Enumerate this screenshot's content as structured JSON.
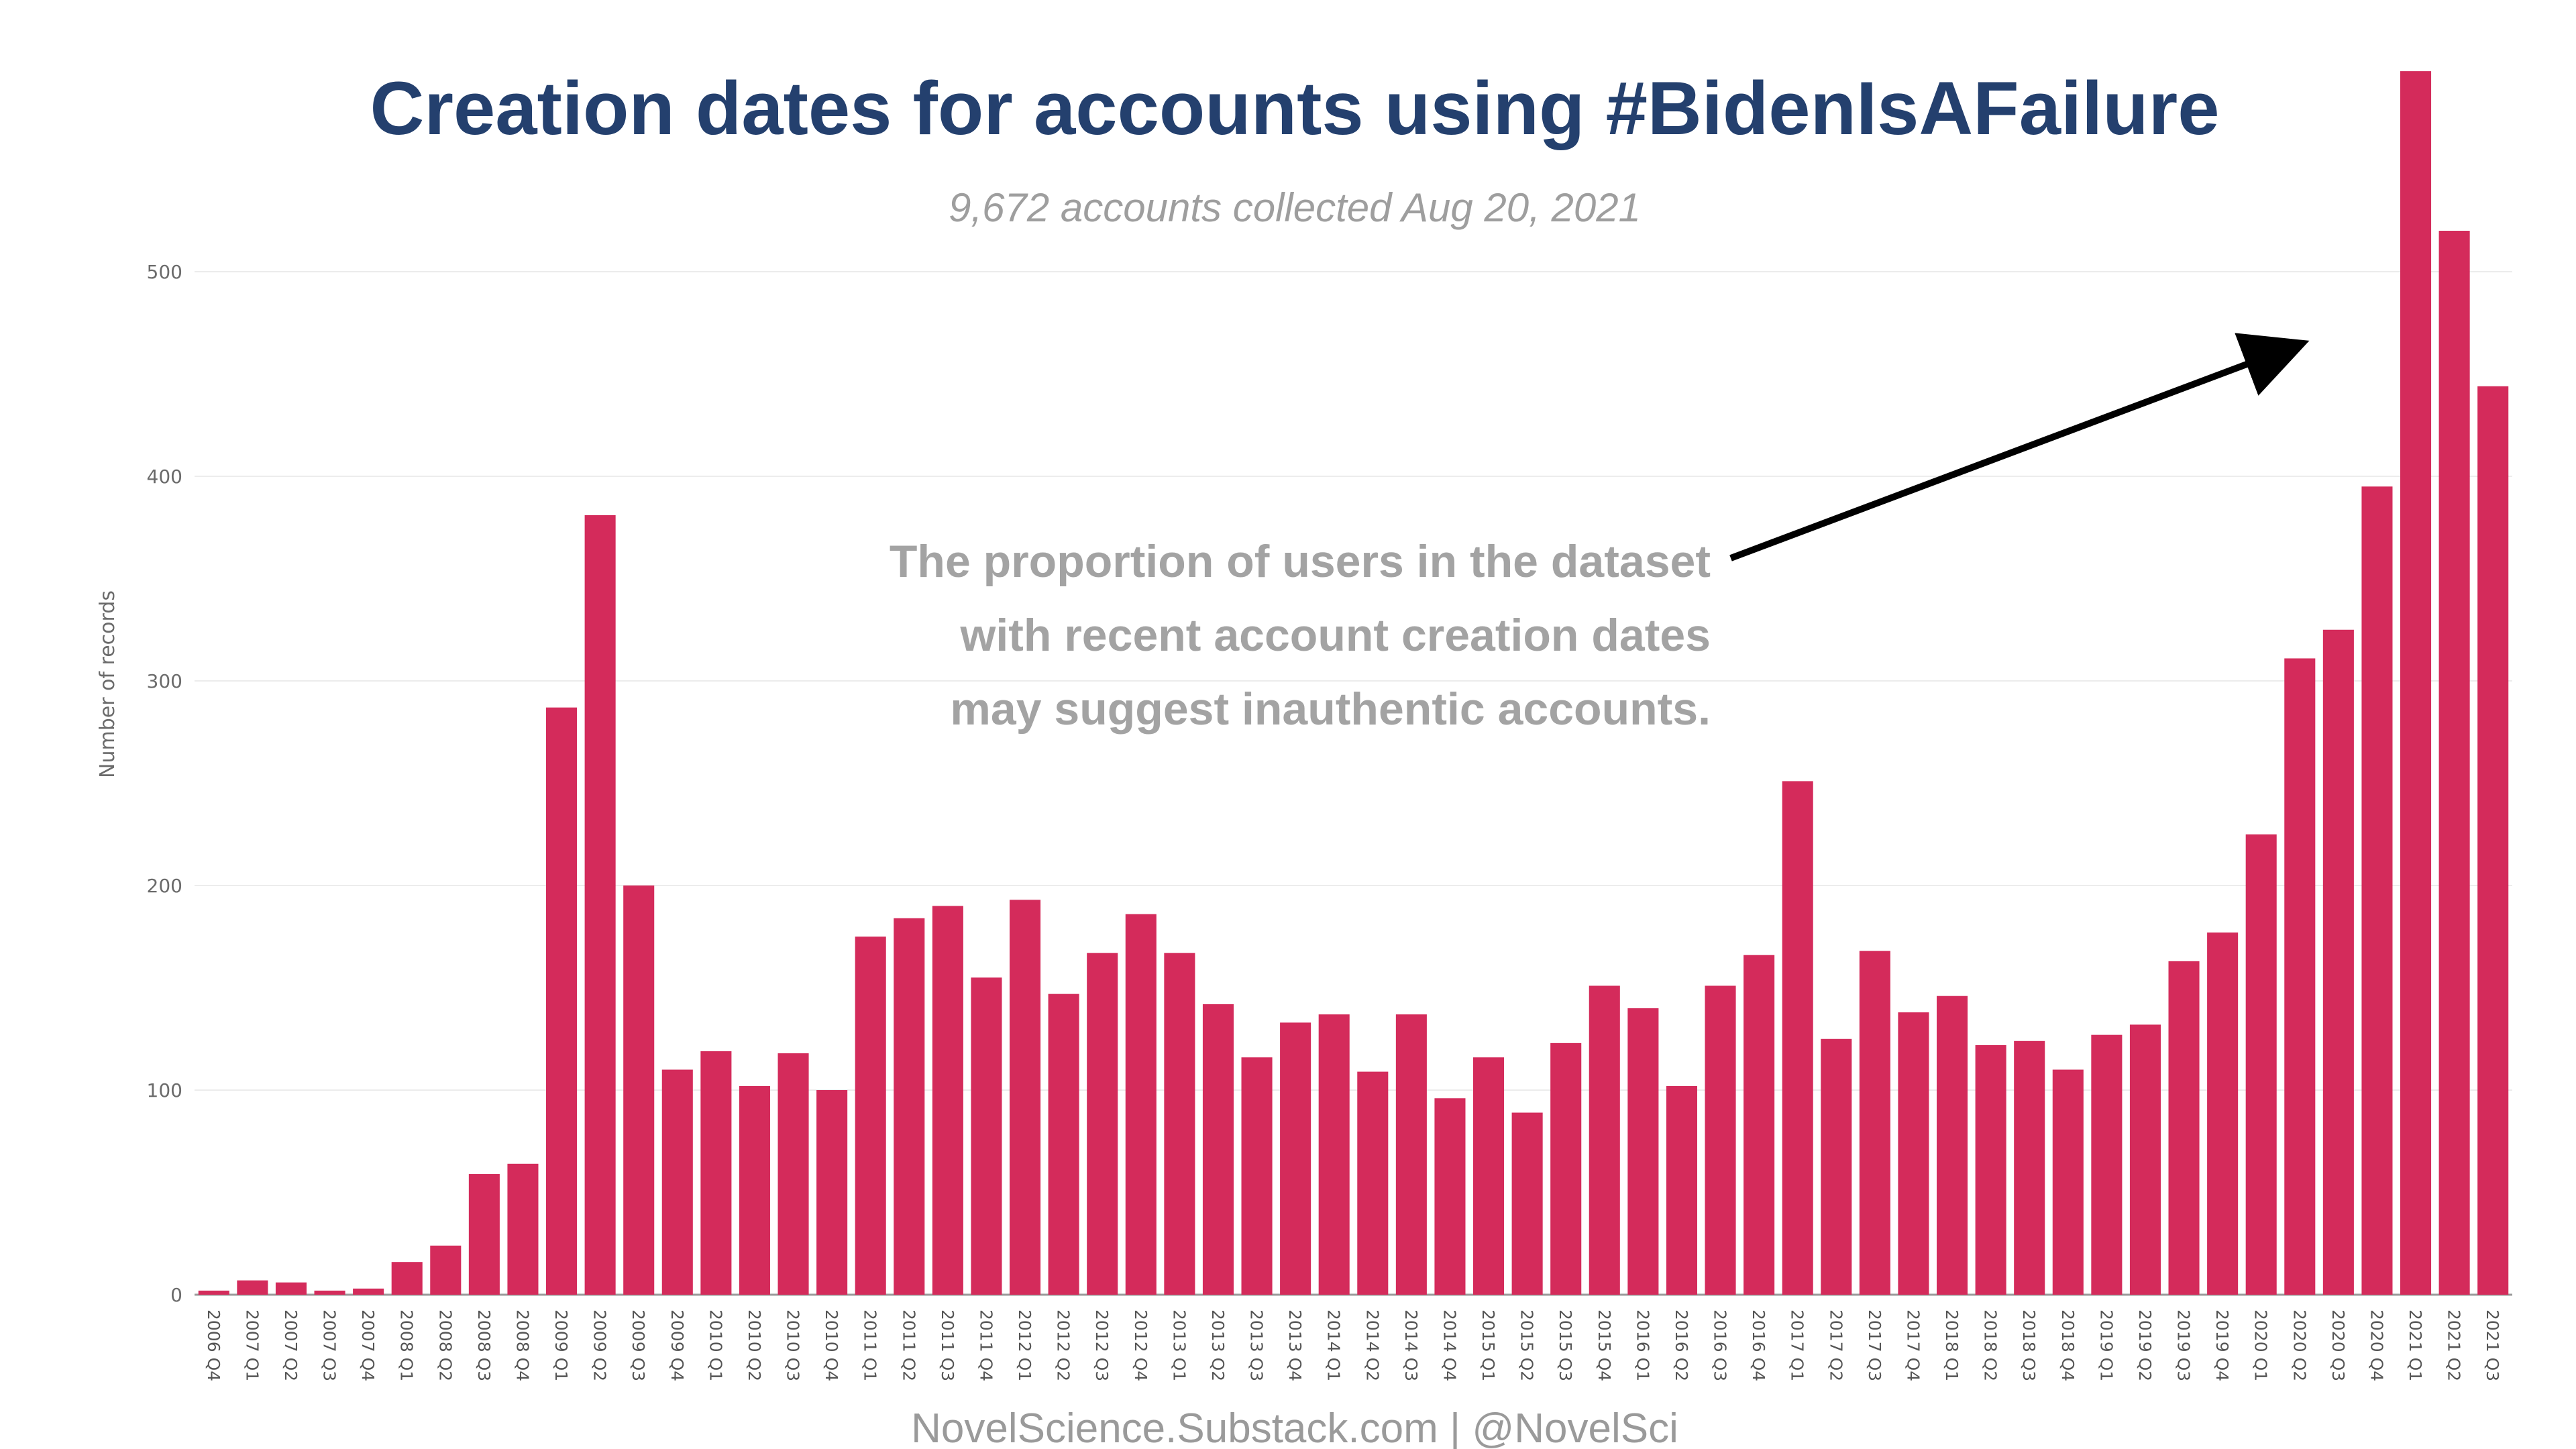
{
  "chart_data": {
    "type": "bar",
    "title": "Creation dates for accounts using #BidenIsAFailure",
    "subtitle": "9,672 accounts collected Aug 20, 2021",
    "xlabel": "",
    "ylabel": "Number of records",
    "ylim": [
      0,
      600
    ],
    "yticks": [
      0,
      100,
      200,
      300,
      400,
      500
    ],
    "ytick_labels": [
      "0",
      "100",
      "200",
      "300",
      "400",
      "500"
    ],
    "grid": true,
    "bar_color": "#d42b5b",
    "categories": [
      "2006 Q4",
      "2007 Q1",
      "2007 Q2",
      "2007 Q3",
      "2007 Q4",
      "2008 Q1",
      "2008 Q2",
      "2008 Q3",
      "2008 Q4",
      "2009 Q1",
      "2009 Q2",
      "2009 Q3",
      "2009 Q4",
      "2010 Q1",
      "2010 Q2",
      "2010 Q3",
      "2010 Q4",
      "2011 Q1",
      "2011 Q2",
      "2011 Q3",
      "2011 Q4",
      "2012 Q1",
      "2012 Q2",
      "2012 Q3",
      "2012 Q4",
      "2013 Q1",
      "2013 Q2",
      "2013 Q3",
      "2013 Q4",
      "2014 Q1",
      "2014 Q2",
      "2014 Q3",
      "2014 Q4",
      "2015 Q1",
      "2015 Q2",
      "2015 Q3",
      "2015 Q4",
      "2016 Q1",
      "2016 Q2",
      "2016 Q3",
      "2016 Q4",
      "2017 Q1",
      "2017 Q2",
      "2017 Q3",
      "2017 Q4",
      "2018 Q1",
      "2018 Q2",
      "2018 Q3",
      "2018 Q4",
      "2019 Q1",
      "2019 Q2",
      "2019 Q3",
      "2019 Q4",
      "2020 Q1",
      "2020 Q2",
      "2020 Q3",
      "2020 Q4",
      "2021 Q1",
      "2021 Q2",
      "2021 Q3"
    ],
    "values": [
      2,
      7,
      6,
      2,
      3,
      16,
      24,
      59,
      64,
      287,
      381,
      200,
      110,
      119,
      102,
      118,
      100,
      175,
      184,
      190,
      155,
      193,
      147,
      167,
      186,
      167,
      142,
      116,
      133,
      137,
      109,
      137,
      96,
      116,
      89,
      123,
      151,
      140,
      102,
      151,
      166,
      251,
      125,
      168,
      138,
      146,
      122,
      124,
      110,
      127,
      132,
      163,
      177,
      225,
      311,
      325,
      395,
      598,
      520,
      444
    ],
    "annotation": {
      "lines": [
        "The proportion of users in the dataset",
        "with recent account creation dates",
        "may suggest inauthentic accounts."
      ],
      "arrow": true
    },
    "source": "NovelScience.Substack.com | @NovelSci"
  }
}
